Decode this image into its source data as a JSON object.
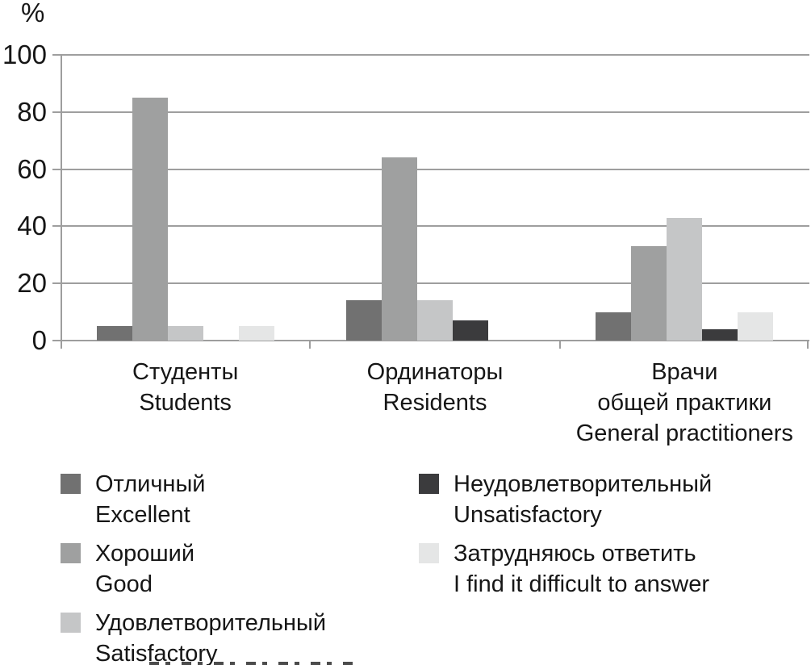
{
  "chart_data": {
    "type": "bar",
    "title": "",
    "ylabel": "%",
    "xlabel": "",
    "ylim": [
      0,
      100
    ],
    "yticks": [
      0,
      20,
      40,
      60,
      80,
      100
    ],
    "grid": true,
    "legend_position": "bottom",
    "categories": [
      {
        "id": "students",
        "label_lines": [
          "Студенты",
          "Students"
        ]
      },
      {
        "id": "residents",
        "label_lines": [
          "Ординаторы",
          "Residents"
        ]
      },
      {
        "id": "general-practitioners",
        "label_lines": [
          "Врачи",
          "общей практики",
          "General practitioners"
        ]
      }
    ],
    "series": [
      {
        "id": "excellent",
        "label_lines": [
          "Отличный",
          "Excellent"
        ],
        "color": "#717171",
        "values": [
          5,
          14,
          10
        ]
      },
      {
        "id": "good",
        "label_lines": [
          "Хороший",
          "Good"
        ],
        "color": "#9fa0a0",
        "values": [
          85,
          64,
          33
        ]
      },
      {
        "id": "satisfactory",
        "label_lines": [
          "Удовлетворительный",
          "Satisfactory"
        ],
        "color": "#c5c6c7",
        "values": [
          5,
          14,
          43
        ]
      },
      {
        "id": "unsatisfactory",
        "label_lines": [
          "Неудовлетворительный",
          "Unsatisfactory"
        ],
        "color": "#3b3b3d",
        "values": [
          0,
          7,
          4
        ]
      },
      {
        "id": "difficult",
        "label_lines": [
          "Затрудняюсь ответить",
          "I find it difficult to answer"
        ],
        "color": "#e5e6e6",
        "values": [
          5,
          0,
          10
        ]
      }
    ],
    "legend_columns": [
      [
        0,
        1,
        2
      ],
      [
        3,
        4
      ]
    ],
    "axis_color": "#9e9e9e",
    "text_color": "#161616"
  }
}
